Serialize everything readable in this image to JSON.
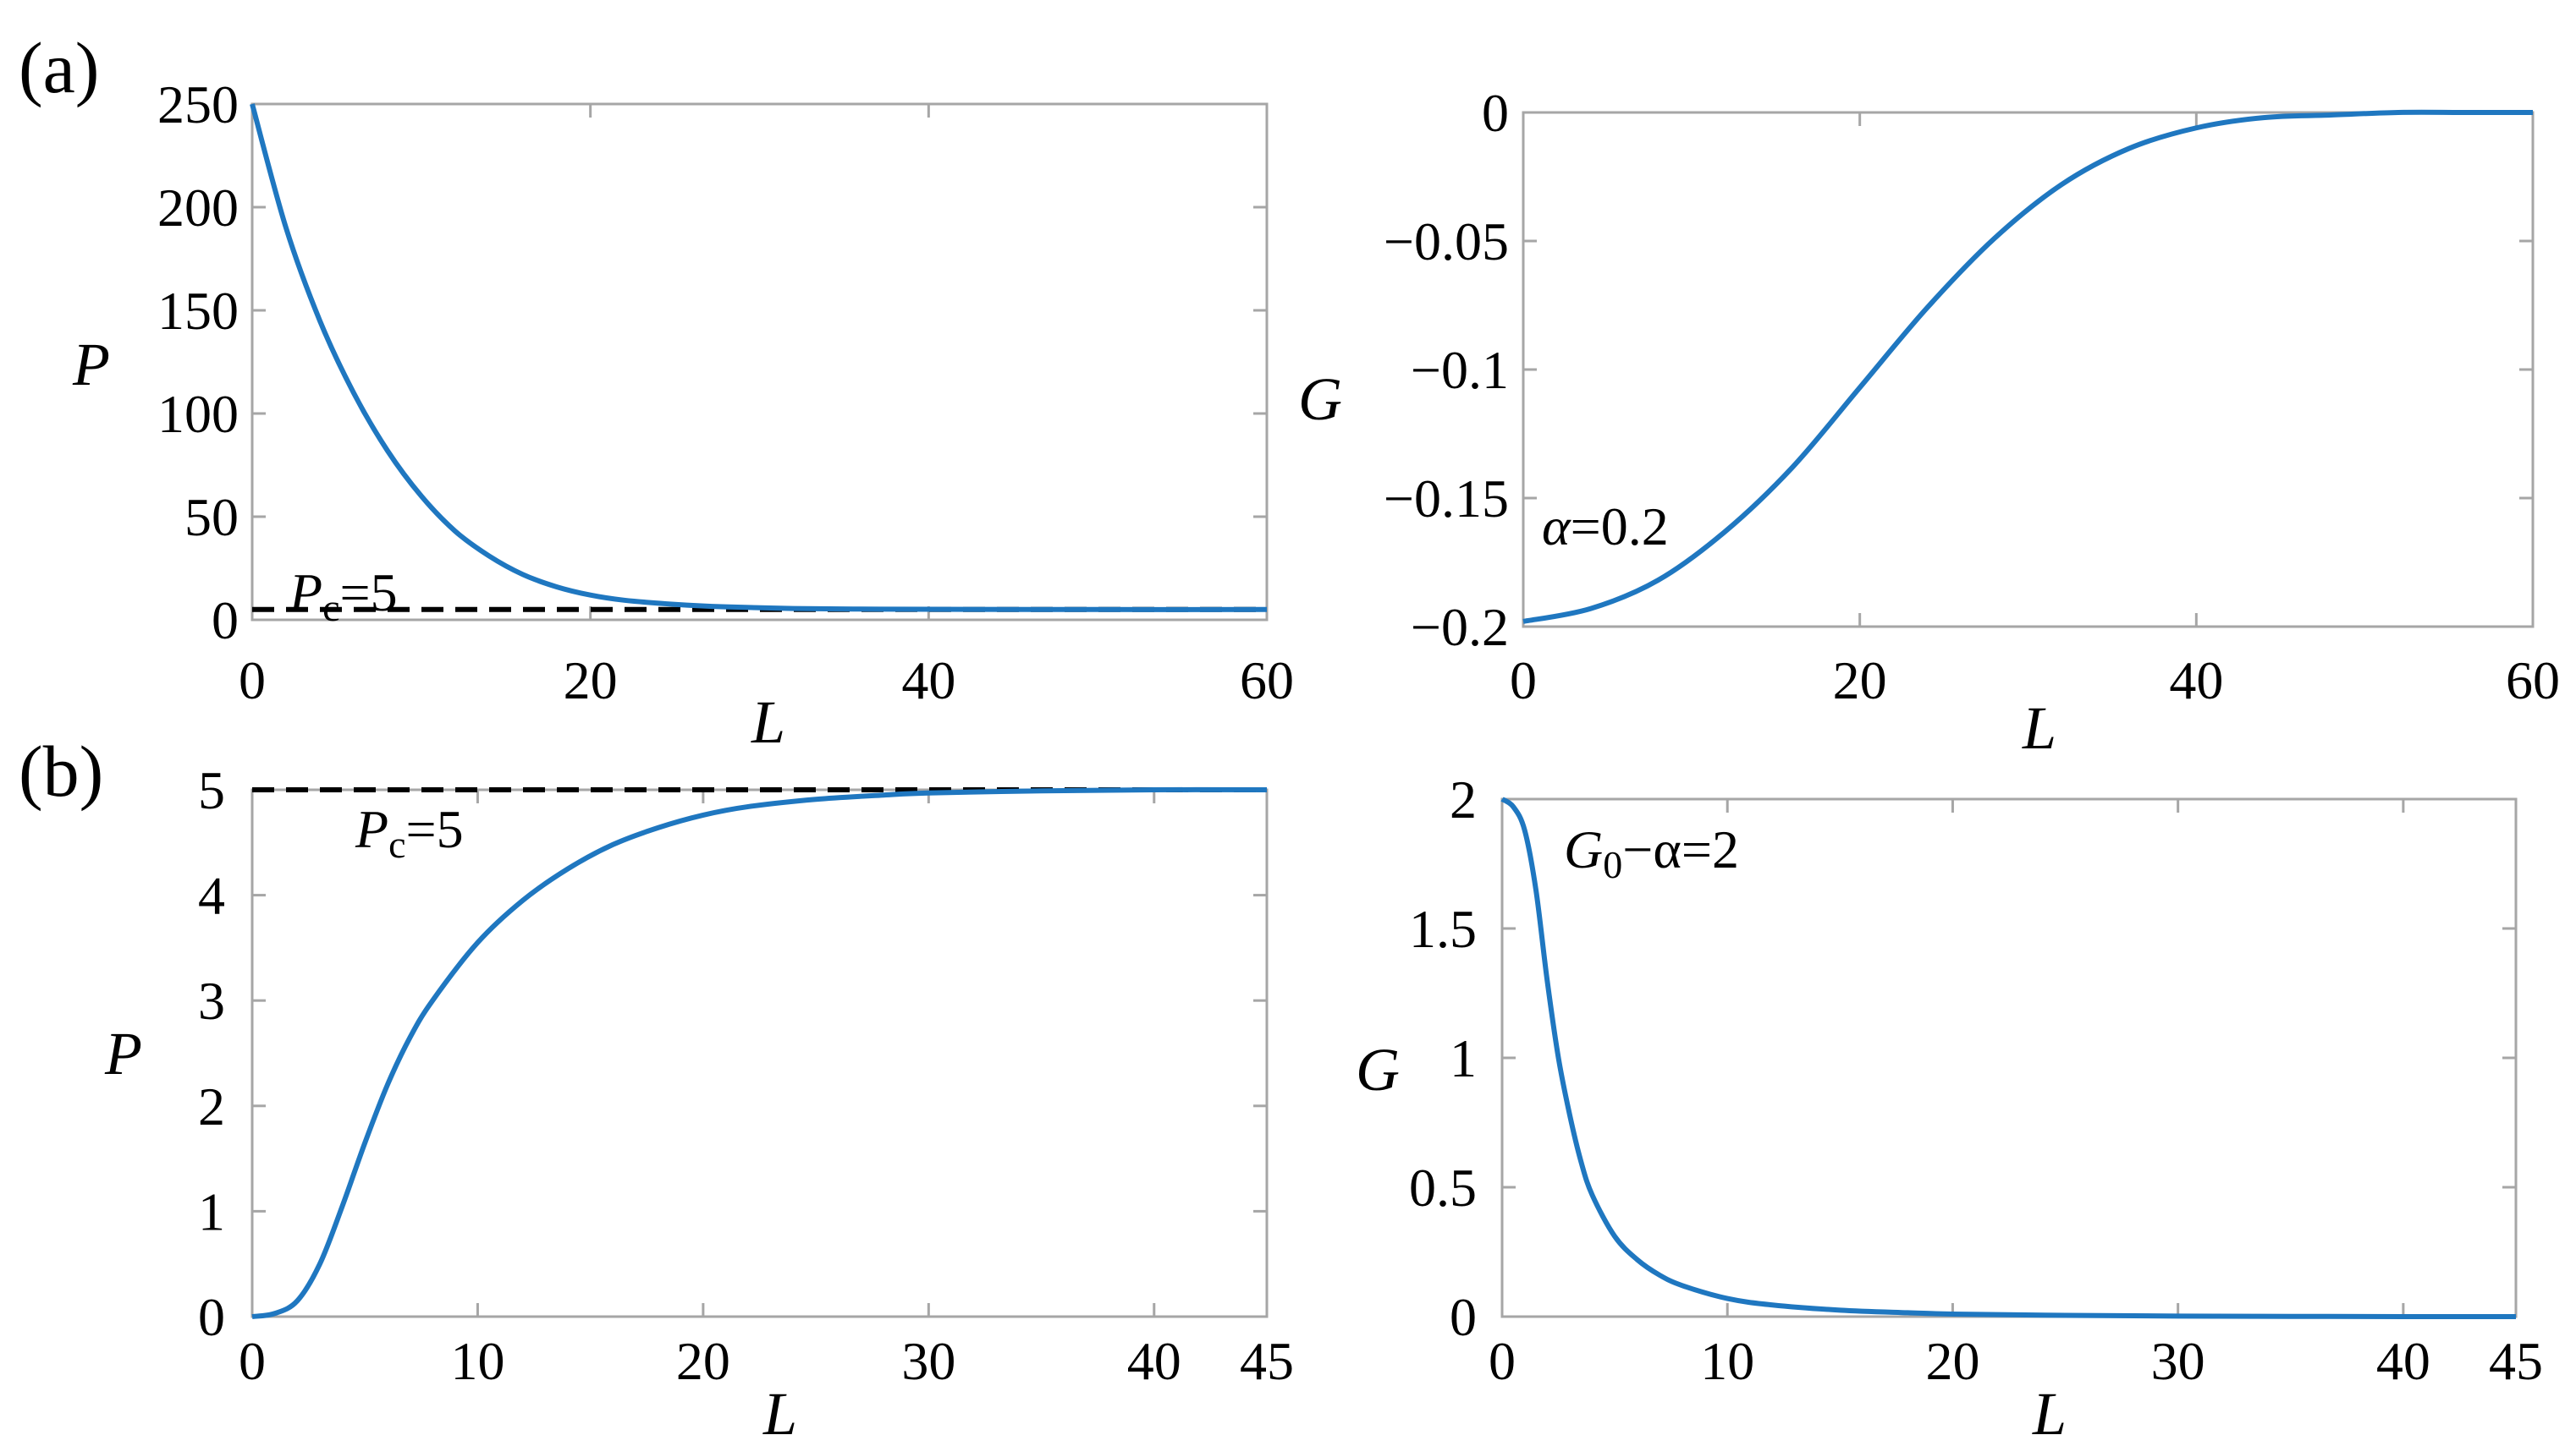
{
  "panel_labels": {
    "a": "(a)",
    "b": "(b)"
  },
  "colors": {
    "curve": "#1f77c0",
    "reference": "#000000",
    "frame": "#a6a6a6"
  },
  "chart_data": [
    {
      "type": "line",
      "panel": "(a)",
      "xlabel": "L",
      "ylabel": "P",
      "xlim": [
        0,
        60
      ],
      "ylim": [
        0,
        250
      ],
      "xticks": [
        0,
        20,
        40,
        60
      ],
      "yticks": [
        0,
        50,
        100,
        150,
        200,
        250
      ],
      "xtick_labels": [
        "0",
        "20",
        "40",
        "60"
      ],
      "ytick_labels": [
        "0",
        "50",
        "100",
        "150",
        "200",
        "250"
      ],
      "grid": false,
      "series": [
        {
          "x": [
            0,
            2,
            4,
            6,
            8,
            10,
            12,
            14,
            16,
            18,
            20,
            22,
            25,
            28,
            32,
            36,
            40,
            50,
            60
          ],
          "values": [
            250,
            190,
            145,
            110,
            82,
            60,
            43,
            31,
            22,
            16,
            12,
            9.5,
            7.5,
            6.3,
            5.5,
            5.2,
            5.1,
            5.0,
            5.0
          ]
        }
      ],
      "reference_line": {
        "y": 5,
        "label_main": "P",
        "label_sub": "c",
        "label_rest": "=5"
      }
    },
    {
      "type": "line",
      "panel": "(a)",
      "xlabel": "L",
      "ylabel": "G",
      "xlim": [
        0,
        60
      ],
      "ylim": [
        -0.2,
        0
      ],
      "xticks": [
        0,
        20,
        40,
        60
      ],
      "yticks": [
        -0.2,
        -0.15,
        -0.1,
        -0.05,
        0
      ],
      "xtick_labels": [
        "0",
        "20",
        "40",
        "60"
      ],
      "ytick_labels": [
        "−0.2",
        "−0.15",
        "−0.1",
        "−0.05",
        "0"
      ],
      "grid": false,
      "series": [
        {
          "x": [
            0,
            4,
            8,
            12,
            16,
            20,
            24,
            28,
            32,
            36,
            40,
            44,
            48,
            52,
            56,
            60
          ],
          "values": [
            -0.198,
            -0.193,
            -0.182,
            -0.163,
            -0.138,
            -0.107,
            -0.076,
            -0.049,
            -0.028,
            -0.014,
            -0.006,
            -0.002,
            -0.001,
            0,
            0,
            0
          ]
        }
      ],
      "annotation": {
        "main": "α",
        "rest": "=0.2"
      }
    },
    {
      "type": "line",
      "panel": "(b)",
      "xlabel": "L",
      "ylabel": "P",
      "xlim": [
        0,
        45
      ],
      "ylim": [
        0,
        5
      ],
      "xticks": [
        0,
        10,
        20,
        30,
        40,
        45
      ],
      "yticks": [
        0,
        1,
        2,
        3,
        4,
        5
      ],
      "xtick_labels": [
        "0",
        "10",
        "20",
        "30",
        "40",
        "45"
      ],
      "ytick_labels": [
        "0",
        "1",
        "2",
        "3",
        "4",
        "5"
      ],
      "grid": false,
      "series": [
        {
          "x": [
            0,
            1,
            2,
            3,
            4,
            5,
            6,
            7,
            8,
            10,
            12,
            14,
            16,
            18,
            20,
            22,
            25,
            28,
            30,
            35,
            40,
            45
          ],
          "values": [
            0,
            0.03,
            0.15,
            0.5,
            1.05,
            1.65,
            2.2,
            2.65,
            3.0,
            3.55,
            3.95,
            4.25,
            4.48,
            4.64,
            4.76,
            4.84,
            4.91,
            4.95,
            4.97,
            4.99,
            5.0,
            5.0
          ]
        }
      ],
      "reference_line": {
        "y": 5,
        "label_main": "P",
        "label_sub": "c",
        "label_rest": "=5"
      }
    },
    {
      "type": "line",
      "panel": "(b)",
      "xlabel": "L",
      "ylabel": "G",
      "xlim": [
        0,
        45
      ],
      "ylim": [
        0,
        2
      ],
      "xticks": [
        0,
        10,
        20,
        30,
        40,
        45
      ],
      "yticks": [
        0,
        0.5,
        1,
        1.5,
        2
      ],
      "xtick_labels": [
        "0",
        "10",
        "20",
        "30",
        "40",
        "45"
      ],
      "ytick_labels": [
        "0",
        "0.5",
        "1",
        "1.5",
        "2"
      ],
      "grid": false,
      "series": [
        {
          "x": [
            0,
            0.5,
            1,
            1.5,
            2,
            2.5,
            3,
            3.5,
            4,
            5,
            6,
            7,
            8,
            10,
            12,
            15,
            18,
            20,
            25,
            30,
            35,
            40,
            45
          ],
          "values": [
            2.0,
            1.97,
            1.88,
            1.65,
            1.3,
            1.0,
            0.78,
            0.6,
            0.47,
            0.31,
            0.22,
            0.16,
            0.12,
            0.07,
            0.045,
            0.025,
            0.015,
            0.01,
            0.005,
            0.002,
            0.001,
            0,
            0
          ]
        }
      ],
      "annotation": {
        "main": "G",
        "sub": "0",
        "rest": "−α=2"
      }
    }
  ]
}
